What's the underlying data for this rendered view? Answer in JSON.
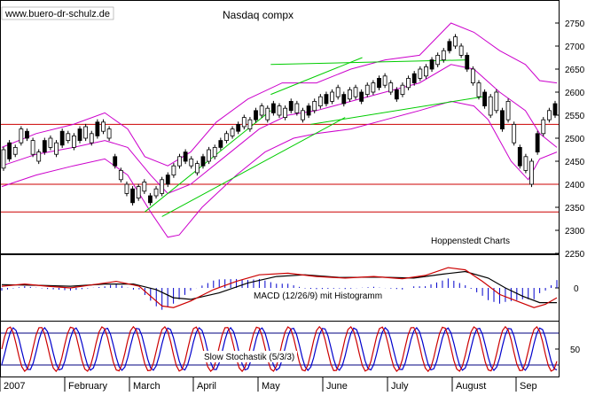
{
  "chart_data": {
    "type": "candlestick",
    "watermark": "www.buero-dr-schulz.de",
    "title": "Nasdaq compx",
    "source": "Hoppenstedt Charts",
    "x_axis": {
      "labels": [
        "2007",
        "February",
        "March",
        "April",
        "May",
        "June",
        "July",
        "August",
        "Sep"
      ]
    },
    "price_panel": {
      "ylim": [
        2250,
        2800
      ],
      "ticks": [
        2250,
        2300,
        2350,
        2400,
        2450,
        2500,
        2550,
        2600,
        2650,
        2700,
        2750
      ],
      "colors": {
        "candle": "#000000",
        "bollinger": "#cc00cc",
        "trendline": "#00cc00",
        "support": "#cc0000"
      },
      "support_levels": [
        2530,
        2400,
        2340
      ],
      "bollinger_upper": [
        [
          0,
          2480
        ],
        [
          12,
          2510
        ],
        [
          25,
          2530
        ],
        [
          36,
          2555
        ],
        [
          44,
          2520
        ],
        [
          50,
          2460
        ],
        [
          58,
          2440
        ],
        [
          66,
          2470
        ],
        [
          75,
          2535
        ],
        [
          86,
          2585
        ],
        [
          98,
          2620
        ],
        [
          110,
          2620
        ],
        [
          122,
          2650
        ],
        [
          134,
          2670
        ],
        [
          146,
          2680
        ],
        [
          157,
          2750
        ],
        [
          165,
          2730
        ],
        [
          174,
          2690
        ],
        [
          183,
          2660
        ],
        [
          188,
          2625
        ],
        [
          194,
          2620
        ]
      ],
      "bollinger_middle": [
        [
          0,
          2440
        ],
        [
          12,
          2465
        ],
        [
          25,
          2480
        ],
        [
          36,
          2495
        ],
        [
          44,
          2480
        ],
        [
          52,
          2420
        ],
        [
          58,
          2380
        ],
        [
          66,
          2400
        ],
        [
          78,
          2460
        ],
        [
          90,
          2520
        ],
        [
          100,
          2550
        ],
        [
          110,
          2560
        ],
        [
          122,
          2580
        ],
        [
          134,
          2600
        ],
        [
          146,
          2620
        ],
        [
          157,
          2660
        ],
        [
          165,
          2650
        ],
        [
          174,
          2600
        ],
        [
          183,
          2560
        ],
        [
          188,
          2510
        ],
        [
          194,
          2480
        ]
      ],
      "bollinger_lower": [
        [
          0,
          2395
        ],
        [
          12,
          2420
        ],
        [
          25,
          2440
        ],
        [
          36,
          2455
        ],
        [
          44,
          2420
        ],
        [
          52,
          2340
        ],
        [
          58,
          2285
        ],
        [
          62,
          2290
        ],
        [
          70,
          2350
        ],
        [
          82,
          2420
        ],
        [
          92,
          2470
        ],
        [
          102,
          2500
        ],
        [
          110,
          2510
        ],
        [
          122,
          2520
        ],
        [
          134,
          2540
        ],
        [
          146,
          2560
        ],
        [
          157,
          2580
        ],
        [
          165,
          2570
        ],
        [
          170,
          2540
        ],
        [
          178,
          2450
        ],
        [
          184,
          2410
        ],
        [
          188,
          2455
        ],
        [
          194,
          2470
        ]
      ],
      "trendlines": [
        {
          "from": [
            50,
            2340
          ],
          "to": [
            94,
            2560
          ]
        },
        {
          "from": [
            56,
            2330
          ],
          "to": [
            120,
            2545
          ]
        },
        {
          "from": [
            94,
            2595
          ],
          "to": [
            126,
            2675
          ]
        },
        {
          "from": [
            94,
            2660
          ],
          "to": [
            163,
            2670
          ]
        },
        {
          "from": [
            108,
            2530
          ],
          "to": [
            168,
            2590
          ]
        }
      ],
      "candles": [
        [
          2435,
          2475
        ],
        [
          2455,
          2490
        ],
        [
          2465,
          2480
        ],
        [
          2490,
          2520
        ],
        [
          2500,
          2515
        ],
        [
          2465,
          2495
        ],
        [
          2450,
          2470
        ],
        [
          2470,
          2495
        ],
        [
          2480,
          2500
        ],
        [
          2465,
          2490
        ],
        [
          2485,
          2515
        ],
        [
          2495,
          2510
        ],
        [
          2480,
          2505
        ],
        [
          2495,
          2520
        ],
        [
          2500,
          2525
        ],
        [
          2490,
          2510
        ],
        [
          2505,
          2535
        ],
        [
          2515,
          2535
        ],
        [
          2500,
          2520
        ],
        [
          2440,
          2460
        ],
        [
          2410,
          2430
        ],
        [
          2380,
          2400
        ],
        [
          2360,
          2390
        ],
        [
          2370,
          2395
        ],
        [
          2385,
          2405
        ],
        [
          2360,
          2375
        ],
        [
          2375,
          2390
        ],
        [
          2380,
          2410
        ],
        [
          2400,
          2420
        ],
        [
          2420,
          2440
        ],
        [
          2440,
          2460
        ],
        [
          2450,
          2470
        ],
        [
          2440,
          2455
        ],
        [
          2425,
          2445
        ],
        [
          2440,
          2460
        ],
        [
          2450,
          2475
        ],
        [
          2460,
          2480
        ],
        [
          2480,
          2495
        ],
        [
          2495,
          2510
        ],
        [
          2505,
          2520
        ],
        [
          2515,
          2530
        ],
        [
          2525,
          2545
        ],
        [
          2520,
          2540
        ],
        [
          2540,
          2560
        ],
        [
          2550,
          2570
        ],
        [
          2540,
          2565
        ],
        [
          2555,
          2575
        ],
        [
          2550,
          2570
        ],
        [
          2545,
          2565
        ],
        [
          2560,
          2580
        ],
        [
          2555,
          2575
        ],
        [
          2540,
          2560
        ],
        [
          2550,
          2570
        ],
        [
          2560,
          2580
        ],
        [
          2570,
          2590
        ],
        [
          2575,
          2595
        ],
        [
          2580,
          2600
        ],
        [
          2590,
          2610
        ],
        [
          2575,
          2595
        ],
        [
          2585,
          2605
        ],
        [
          2590,
          2610
        ],
        [
          2580,
          2600
        ],
        [
          2595,
          2615
        ],
        [
          2600,
          2620
        ],
        [
          2610,
          2630
        ],
        [
          2615,
          2635
        ],
        [
          2600,
          2620
        ],
        [
          2585,
          2605
        ],
        [
          2595,
          2615
        ],
        [
          2610,
          2630
        ],
        [
          2620,
          2640
        ],
        [
          2630,
          2650
        ],
        [
          2635,
          2655
        ],
        [
          2650,
          2670
        ],
        [
          2660,
          2680
        ],
        [
          2670,
          2690
        ],
        [
          2690,
          2710
        ],
        [
          2700,
          2720
        ],
        [
          2680,
          2700
        ],
        [
          2650,
          2680
        ],
        [
          2620,
          2650
        ],
        [
          2590,
          2620
        ],
        [
          2570,
          2600
        ],
        [
          2550,
          2590
        ],
        [
          2560,
          2600
        ],
        [
          2520,
          2560
        ],
        [
          2540,
          2580
        ],
        [
          2490,
          2530
        ],
        [
          2440,
          2480
        ],
        [
          2430,
          2460
        ],
        [
          2400,
          2450
        ],
        [
          2470,
          2510
        ],
        [
          2510,
          2540
        ],
        [
          2540,
          2560
        ],
        [
          2550,
          2575
        ]
      ]
    },
    "macd_panel": {
      "title": "MACD (12/26/9) mit Histogramm",
      "ylim": [
        -1,
        1
      ],
      "ticks": [
        {
          "value": 0,
          "label": "0"
        }
      ],
      "colors": {
        "macd": "#cc0000",
        "signal": "#000000",
        "histogram": "#0000cc"
      },
      "macd": [
        [
          0,
          0.05
        ],
        [
          8,
          0.12
        ],
        [
          16,
          0.05
        ],
        [
          24,
          0.0
        ],
        [
          32,
          0.1
        ],
        [
          40,
          0.2
        ],
        [
          48,
          0.05
        ],
        [
          52,
          -0.25
        ],
        [
          56,
          -0.55
        ],
        [
          60,
          -0.6
        ],
        [
          66,
          -0.4
        ],
        [
          74,
          -0.05
        ],
        [
          82,
          0.2
        ],
        [
          90,
          0.4
        ],
        [
          100,
          0.45
        ],
        [
          110,
          0.35
        ],
        [
          120,
          0.3
        ],
        [
          130,
          0.35
        ],
        [
          140,
          0.28
        ],
        [
          148,
          0.38
        ],
        [
          156,
          0.62
        ],
        [
          162,
          0.55
        ],
        [
          168,
          0.2
        ],
        [
          174,
          -0.2
        ],
        [
          180,
          -0.4
        ],
        [
          186,
          -0.6
        ],
        [
          190,
          -0.5
        ],
        [
          194,
          -0.3
        ]
      ],
      "signal": [
        [
          0,
          0.1
        ],
        [
          12,
          0.08
        ],
        [
          24,
          0.05
        ],
        [
          36,
          0.12
        ],
        [
          46,
          0.12
        ],
        [
          54,
          -0.05
        ],
        [
          60,
          -0.3
        ],
        [
          66,
          -0.35
        ],
        [
          76,
          -0.15
        ],
        [
          86,
          0.15
        ],
        [
          96,
          0.35
        ],
        [
          106,
          0.4
        ],
        [
          118,
          0.32
        ],
        [
          132,
          0.33
        ],
        [
          144,
          0.3
        ],
        [
          154,
          0.42
        ],
        [
          162,
          0.5
        ],
        [
          170,
          0.3
        ],
        [
          176,
          0.0
        ],
        [
          182,
          -0.25
        ],
        [
          188,
          -0.45
        ],
        [
          194,
          -0.45
        ]
      ]
    },
    "stochastic_panel": {
      "title": "Slow Stochastik (5/3/3)",
      "ylim": [
        0,
        100
      ],
      "ticks": [
        {
          "value": 50,
          "label": "50"
        }
      ],
      "levels": [
        80,
        20
      ],
      "colors": {
        "k": "#cc0000",
        "d": "#0000cc",
        "level": "#000080"
      }
    }
  }
}
